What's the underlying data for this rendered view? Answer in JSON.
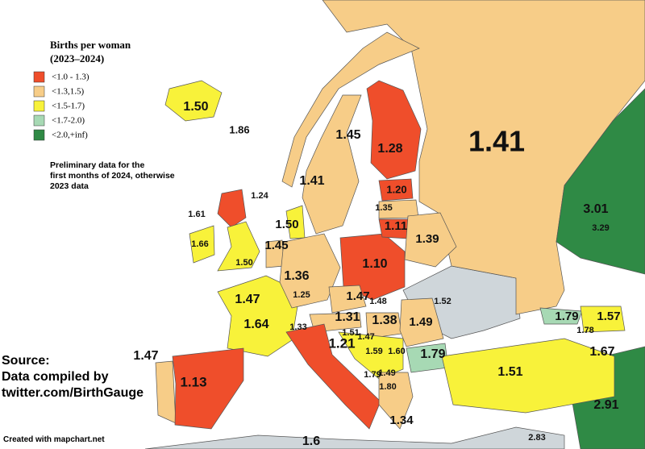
{
  "legend": {
    "title": "Births per woman",
    "subtitle": "(2023–2024)",
    "items": [
      {
        "label": "<1.0 - 1.3)",
        "color": "#ef4e2b"
      },
      {
        "label": "<1.3,1.5)",
        "color": "#f7cd88"
      },
      {
        "label": "<1.5-1.7)",
        "color": "#f8f23a"
      },
      {
        "label": "<1.7-2.0)",
        "color": "#a7d9b4"
      },
      {
        "label": "<2.0,+inf)",
        "color": "#2f8a45"
      }
    ]
  },
  "note": "Preliminary data for the first months of 2024, otherwise 2023 data",
  "source": [
    "Source:",
    "Data compiled by",
    "twitter.com/BirthGauge"
  ],
  "credit": "Created with mapchart.net",
  "labels": [
    "1.50",
    "1.86",
    "1.45",
    "1.41",
    "1.28",
    "1.41",
    "1.20",
    "1.35",
    "1.11",
    "1.39",
    "1.24",
    "1.61",
    "1.66",
    "1.50",
    "1.50",
    "1.45",
    "1.36",
    "1.10",
    "3.01",
    "3.29",
    "1.25",
    "1.47",
    "1.64",
    "1.47",
    "1.48",
    "1.31",
    "1.38",
    "1.49",
    "1.52",
    "1.79",
    "1.57",
    "1.78",
    "1.33",
    "1.51",
    "1.47",
    "1.59",
    "1.60",
    "1.79",
    "1.67",
    "1.21",
    "1.47",
    "1.13",
    "1.79",
    "1.49",
    "1.80",
    "1.51",
    "1.34",
    "2.91",
    "2.83",
    "1.6"
  ]
}
